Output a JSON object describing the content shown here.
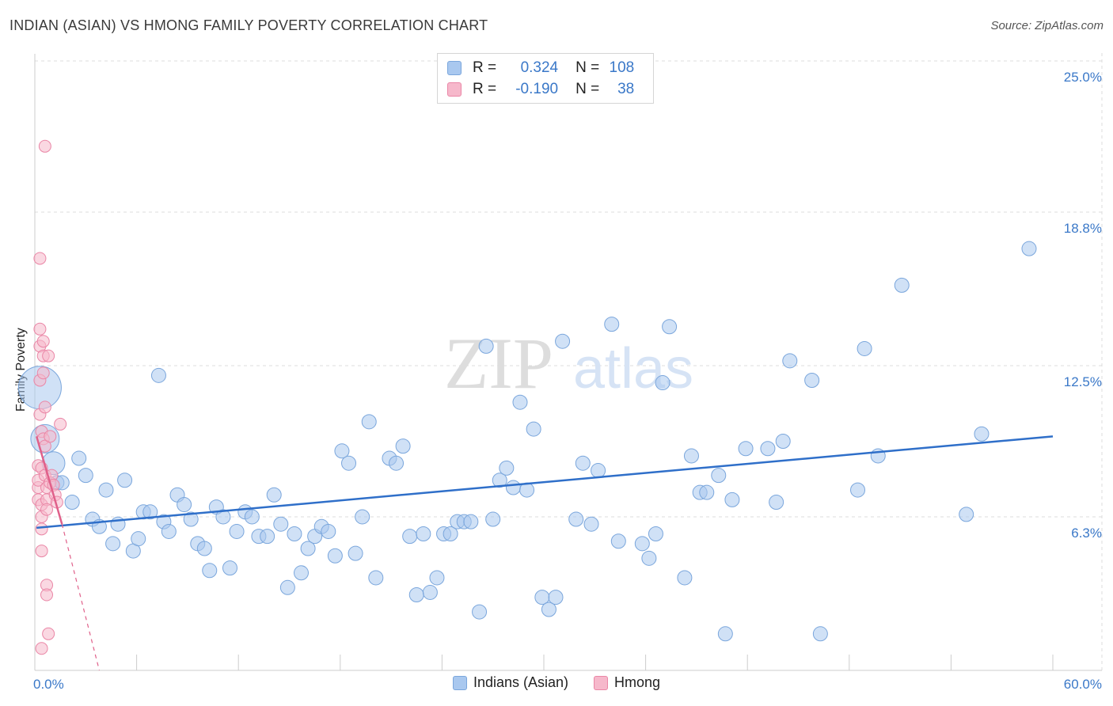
{
  "title": "INDIAN (ASIAN) VS HMONG FAMILY POVERTY CORRELATION CHART",
  "source": "Source: ZipAtlas.com",
  "colors": {
    "blue_fill": "#a9c8ef",
    "blue_stroke": "#7aa6dc",
    "blue_line": "#2f6fc9",
    "pink_fill": "#f6b8cb",
    "pink_stroke": "#ea86a6",
    "pink_line": "#e0608a",
    "axis_text": "#3a78c8",
    "grid": "#dcdcdc"
  },
  "legend": {
    "r_label": "R =",
    "n_label": "N =",
    "rows": [
      {
        "r": "0.324",
        "n": "108"
      },
      {
        "r": "-0.190",
        "n": "38"
      }
    ]
  },
  "chart_data": {
    "type": "scatter",
    "title": "INDIAN (ASIAN) VS HMONG FAMILY POVERTY CORRELATION CHART",
    "ylabel": "Family Poverty",
    "xlim": [
      0,
      60
    ],
    "ylim": [
      0,
      25
    ],
    "x_tick_labels": [
      "0.0%",
      "60.0%"
    ],
    "y_tick_labels": [
      {
        "value": 6.3,
        "label": "6.3%"
      },
      {
        "value": 12.5,
        "label": "12.5%"
      },
      {
        "value": 18.8,
        "label": "18.8%"
      },
      {
        "value": 25.0,
        "label": "25.0%"
      }
    ],
    "watermark": {
      "part1": "ZIP",
      "part2": "atlas"
    },
    "series": [
      {
        "name": "Indians (Asian)",
        "color": "blue",
        "trend": {
          "x0": 0.1,
          "y0": 5.85,
          "x1": 60,
          "y1": 9.6
        },
        "points": [
          [
            0.3,
            11.6,
            3
          ],
          [
            0.6,
            9.5,
            2
          ],
          [
            1.1,
            8.5,
            1.6
          ],
          [
            1.3,
            7.7,
            1
          ],
          [
            1.6,
            7.7,
            1
          ],
          [
            2.2,
            6.9,
            1
          ],
          [
            2.6,
            8.7,
            1
          ],
          [
            3.0,
            8.0,
            1
          ],
          [
            3.4,
            6.2,
            1
          ],
          [
            3.8,
            5.9,
            1
          ],
          [
            4.2,
            7.4,
            1
          ],
          [
            4.6,
            5.2,
            1
          ],
          [
            4.9,
            6.0,
            1
          ],
          [
            5.3,
            7.8,
            1
          ],
          [
            5.8,
            4.9,
            1
          ],
          [
            6.1,
            5.4,
            1
          ],
          [
            6.4,
            6.5,
            1
          ],
          [
            6.8,
            6.5,
            1
          ],
          [
            7.3,
            12.1,
            1
          ],
          [
            7.6,
            6.1,
            1
          ],
          [
            7.9,
            5.7,
            1
          ],
          [
            8.4,
            7.2,
            1
          ],
          [
            8.8,
            6.8,
            1
          ],
          [
            9.2,
            6.2,
            1
          ],
          [
            9.6,
            5.2,
            1
          ],
          [
            10.0,
            5.0,
            1
          ],
          [
            10.3,
            4.1,
            1
          ],
          [
            10.7,
            6.7,
            1
          ],
          [
            11.1,
            6.3,
            1
          ],
          [
            11.5,
            4.2,
            1
          ],
          [
            11.9,
            5.7,
            1
          ],
          [
            12.4,
            6.5,
            1
          ],
          [
            12.8,
            6.3,
            1
          ],
          [
            13.2,
            5.5,
            1
          ],
          [
            13.7,
            5.5,
            1
          ],
          [
            14.1,
            7.2,
            1
          ],
          [
            14.5,
            6.0,
            1
          ],
          [
            14.9,
            3.4,
            1
          ],
          [
            15.3,
            5.6,
            1
          ],
          [
            15.7,
            4.0,
            1
          ],
          [
            16.1,
            5.0,
            1
          ],
          [
            16.5,
            5.5,
            1
          ],
          [
            16.9,
            5.9,
            1
          ],
          [
            17.3,
            5.7,
            1
          ],
          [
            17.7,
            4.7,
            1
          ],
          [
            18.1,
            9.0,
            1
          ],
          [
            18.5,
            8.5,
            1
          ],
          [
            18.9,
            4.8,
            1
          ],
          [
            19.3,
            6.3,
            1
          ],
          [
            19.7,
            10.2,
            1
          ],
          [
            20.1,
            3.8,
            1
          ],
          [
            20.9,
            8.7,
            1
          ],
          [
            21.3,
            8.5,
            1
          ],
          [
            21.7,
            9.2,
            1
          ],
          [
            22.1,
            5.5,
            1
          ],
          [
            22.5,
            3.1,
            1
          ],
          [
            22.9,
            5.6,
            1
          ],
          [
            23.3,
            3.2,
            1
          ],
          [
            23.7,
            3.8,
            1
          ],
          [
            24.1,
            5.6,
            1
          ],
          [
            24.5,
            5.6,
            1
          ],
          [
            24.9,
            6.1,
            1
          ],
          [
            25.3,
            6.1,
            1
          ],
          [
            25.7,
            6.1,
            1
          ],
          [
            26.2,
            2.4,
            1
          ],
          [
            26.6,
            13.3,
            1
          ],
          [
            27.0,
            6.2,
            1
          ],
          [
            27.4,
            7.8,
            1
          ],
          [
            27.8,
            8.3,
            1
          ],
          [
            28.2,
            7.5,
            1
          ],
          [
            28.6,
            11.0,
            1
          ],
          [
            29.0,
            7.4,
            1
          ],
          [
            29.4,
            9.9,
            1
          ],
          [
            29.9,
            3.0,
            1
          ],
          [
            30.3,
            2.5,
            1
          ],
          [
            30.7,
            3.0,
            1
          ],
          [
            31.1,
            13.5,
            1
          ],
          [
            31.9,
            6.2,
            1
          ],
          [
            32.3,
            8.5,
            1
          ],
          [
            32.8,
            6.0,
            1
          ],
          [
            33.2,
            8.2,
            1
          ],
          [
            34.0,
            14.2,
            1
          ],
          [
            34.4,
            5.3,
            1
          ],
          [
            35.8,
            5.2,
            1
          ],
          [
            36.2,
            4.6,
            1
          ],
          [
            36.6,
            5.6,
            1
          ],
          [
            37.0,
            11.8,
            1
          ],
          [
            37.4,
            14.1,
            1
          ],
          [
            38.3,
            3.8,
            1
          ],
          [
            38.7,
            8.8,
            1
          ],
          [
            39.2,
            7.3,
            1
          ],
          [
            39.6,
            7.3,
            1
          ],
          [
            40.3,
            8.0,
            1
          ],
          [
            40.7,
            1.5,
            1
          ],
          [
            41.1,
            7.0,
            1
          ],
          [
            41.9,
            9.1,
            1
          ],
          [
            43.2,
            9.1,
            1
          ],
          [
            43.7,
            6.9,
            1
          ],
          [
            44.1,
            9.4,
            1
          ],
          [
            44.5,
            12.7,
            1
          ],
          [
            45.8,
            11.9,
            1
          ],
          [
            46.3,
            1.5,
            1
          ],
          [
            48.5,
            7.4,
            1
          ],
          [
            48.9,
            13.2,
            1
          ],
          [
            49.7,
            8.8,
            1
          ],
          [
            51.1,
            15.8,
            1
          ],
          [
            54.9,
            6.4,
            1
          ],
          [
            55.8,
            9.7,
            1
          ],
          [
            58.6,
            17.3,
            1
          ]
        ]
      },
      {
        "name": "Hmong",
        "color": "pink",
        "trend": {
          "x0": 0.1,
          "y0": 9.6,
          "x1": 1.6,
          "y1": 6.0
        },
        "trend_dashed": {
          "x0": 1.6,
          "y0": 6.0,
          "x1": 3.8,
          "y1": 0.0
        },
        "points": [
          [
            0.2,
            7.0
          ],
          [
            0.2,
            7.5
          ],
          [
            0.2,
            7.8
          ],
          [
            0.2,
            8.4
          ],
          [
            0.3,
            10.5
          ],
          [
            0.3,
            11.9
          ],
          [
            0.3,
            13.3
          ],
          [
            0.3,
            14.0
          ],
          [
            0.3,
            16.9
          ],
          [
            0.4,
            9.8
          ],
          [
            0.4,
            8.3
          ],
          [
            0.4,
            6.8
          ],
          [
            0.4,
            6.3
          ],
          [
            0.4,
            5.8
          ],
          [
            0.4,
            4.9
          ],
          [
            0.4,
            0.9
          ],
          [
            0.5,
            13.5
          ],
          [
            0.5,
            12.9
          ],
          [
            0.5,
            12.2
          ],
          [
            0.5,
            9.5
          ],
          [
            0.6,
            21.5
          ],
          [
            0.6,
            10.8
          ],
          [
            0.6,
            9.2
          ],
          [
            0.6,
            8.0
          ],
          [
            0.7,
            7.5
          ],
          [
            0.7,
            7.0
          ],
          [
            0.7,
            6.6
          ],
          [
            0.7,
            3.5
          ],
          [
            0.7,
            3.1
          ],
          [
            0.8,
            1.5
          ],
          [
            0.8,
            12.9
          ],
          [
            0.9,
            9.6
          ],
          [
            0.9,
            7.7
          ],
          [
            1.0,
            8.0
          ],
          [
            1.1,
            7.6
          ],
          [
            1.2,
            7.2
          ],
          [
            1.3,
            6.9
          ],
          [
            1.5,
            10.1
          ]
        ]
      }
    ]
  }
}
